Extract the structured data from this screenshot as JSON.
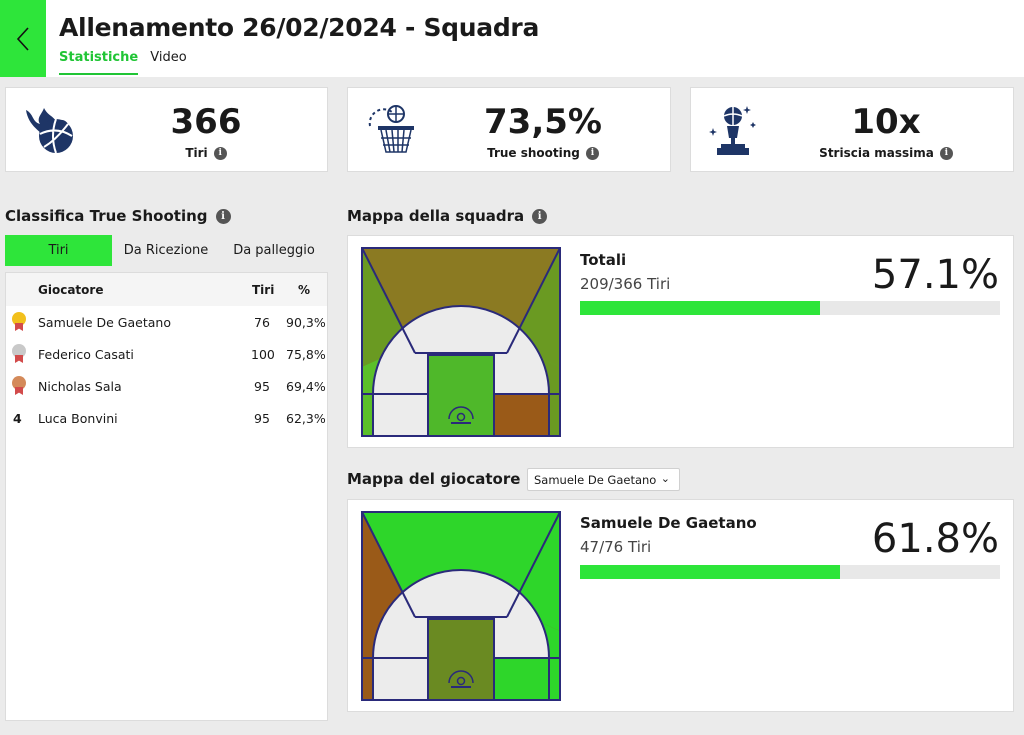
{
  "header": {
    "title": "Allenamento 26/02/2024 - Squadra",
    "tabs": [
      {
        "label": "Statistiche",
        "active": true
      },
      {
        "label": "Video",
        "active": false
      }
    ]
  },
  "stats": [
    {
      "value": "366",
      "label": "Tiri",
      "icon": "flaming-basketball-icon"
    },
    {
      "value": "73,5%",
      "label": "True shooting",
      "icon": "basketball-hoop-icon"
    },
    {
      "value": "10x",
      "label": "Striscia massima",
      "icon": "trophy-icon"
    }
  ],
  "ranking": {
    "title": "Classifica True Shooting",
    "tabs": [
      "Tiri",
      "Da Ricezione",
      "Da palleggio"
    ],
    "columns": {
      "player": "Giocatore",
      "shots": "Tiri",
      "pct": "%"
    },
    "rows": [
      {
        "rank": "1",
        "medal": "gold",
        "player": "Samuele De Gaetano",
        "shots": "76",
        "pct": "90,3%"
      },
      {
        "rank": "2",
        "medal": "silver",
        "player": "Federico Casati",
        "shots": "100",
        "pct": "75,8%"
      },
      {
        "rank": "3",
        "medal": "bronze",
        "player": "Nicholas Sala",
        "shots": "95",
        "pct": "69,4%"
      },
      {
        "rank": "4",
        "medal": "",
        "player": "Luca Bonvini",
        "shots": "95",
        "pct": "62,3%"
      }
    ]
  },
  "team_map": {
    "title": "Mappa della squadra",
    "name": "Totali",
    "shots": "209/366 Tiri",
    "percent": "57.1%",
    "progress": 0.571,
    "zone_colors": {
      "top_center": "#8b7a22",
      "top_left": "#6a9a22",
      "top_right": "#6a9a22",
      "wing_left": "#5bbf2a",
      "wing_right": "#6a9a22",
      "paint": "#4fb82a",
      "baseline_right": "#9a5a18"
    }
  },
  "player_map": {
    "title": "Mappa del giocatore",
    "selected_player": "Samuele De Gaetano",
    "name": "Samuele De Gaetano",
    "shots": "47/76 Tiri",
    "percent": "61.8%",
    "progress": 0.618,
    "zone_colors": {
      "top_center": "#2ed62a",
      "top_left": "#9a5a18",
      "top_right": "#2ed62a",
      "wing_left": "#9a5a18",
      "wing_right": "#2ed62a",
      "paint": "#6a8a22",
      "baseline_right": "#2ed62a"
    }
  },
  "colors": {
    "accent": "#2ee53a",
    "court_line": "#2a2a7a",
    "empty_zone": "#ececec"
  }
}
